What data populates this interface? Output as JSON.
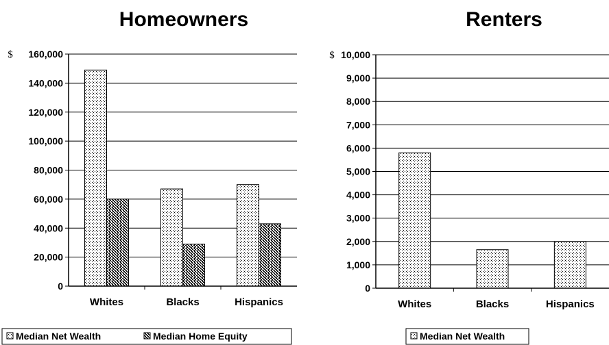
{
  "chart_data": [
    {
      "type": "bar",
      "title": "Homeowners",
      "currency_symbol": "$",
      "categories": [
        "Whites",
        "Blacks",
        "Hispanics"
      ],
      "series": [
        {
          "name": "Median Net Wealth",
          "values": [
            149000,
            67000,
            70000
          ]
        },
        {
          "name": "Median Home Equity",
          "values": [
            60000,
            29000,
            43000
          ]
        }
      ],
      "ylim": [
        0,
        160000
      ],
      "yticks": [
        0,
        20000,
        40000,
        60000,
        80000,
        100000,
        120000,
        140000,
        160000
      ],
      "ytick_labels": [
        "0",
        "20,000",
        "40,000",
        "60,000",
        "80,000",
        "100,000",
        "120,000",
        "140,000",
        "160,000"
      ],
      "grid": true,
      "legend_position": "bottom"
    },
    {
      "type": "bar",
      "title": "Renters",
      "currency_symbol": "$",
      "categories": [
        "Whites",
        "Blacks",
        "Hispanics"
      ],
      "series": [
        {
          "name": "Median Net Wealth",
          "values": [
            5800,
            1650,
            2000
          ]
        }
      ],
      "ylim": [
        0,
        10000
      ],
      "yticks": [
        0,
        1000,
        2000,
        3000,
        4000,
        5000,
        6000,
        7000,
        8000,
        9000,
        10000
      ],
      "ytick_labels": [
        "0",
        "1,000",
        "2,000",
        "3,000",
        "4,000",
        "5,000",
        "6,000",
        "7,000",
        "8,000",
        "9,000",
        "10,000"
      ],
      "grid": true,
      "legend_position": "bottom"
    }
  ]
}
